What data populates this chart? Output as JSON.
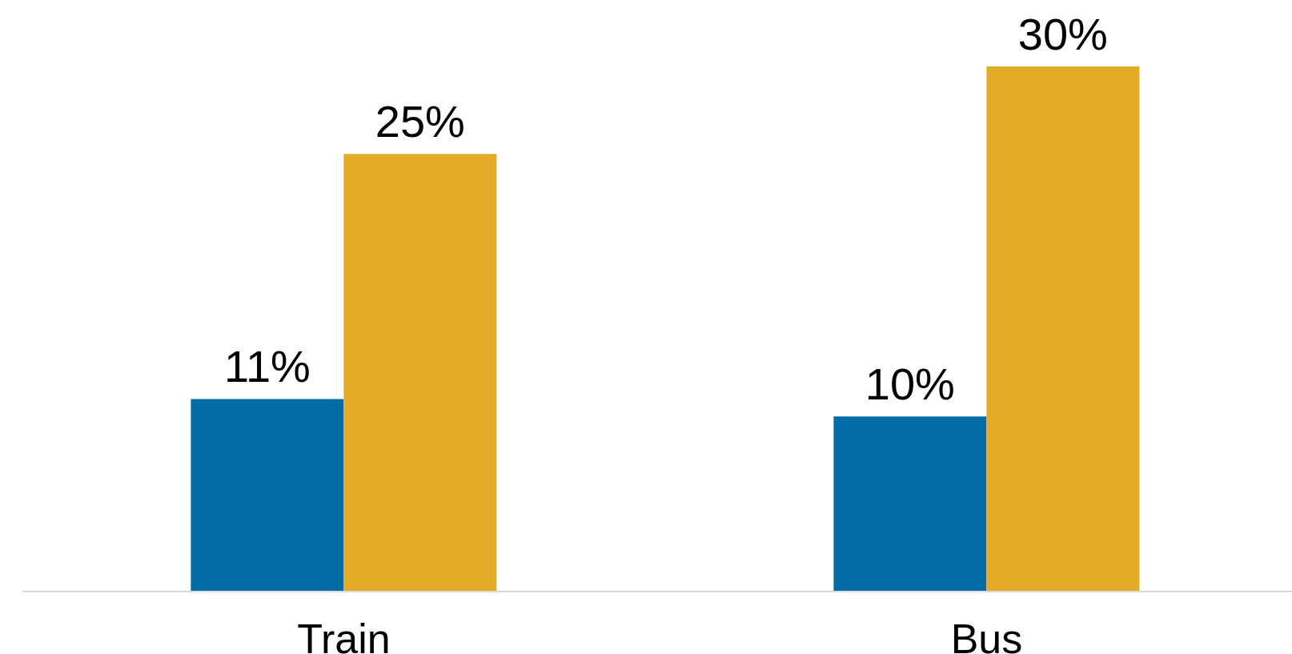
{
  "chart_data": {
    "type": "bar",
    "categories": [
      "Train",
      "Bus"
    ],
    "series": [
      {
        "color": "#036ca6",
        "values": [
          11,
          10
        ],
        "value_labels": [
          "11%",
          "10%"
        ]
      },
      {
        "color": "#e4ab27",
        "values": [
          25,
          30
        ],
        "value_labels": [
          "25%",
          "30%"
        ]
      }
    ],
    "tick_labels": "x"
  }
}
